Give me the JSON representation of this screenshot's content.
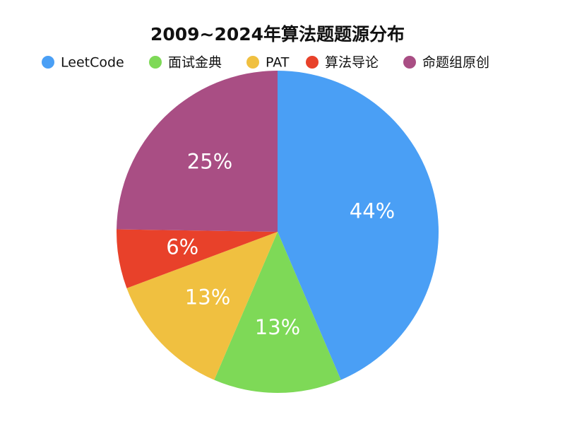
{
  "chart_data": {
    "type": "pie",
    "title": "2009~2024年算法题题源分布",
    "categories": [
      "LeetCode",
      "面试金典",
      "PAT",
      "算法导论",
      "命题组原创"
    ],
    "values": [
      44,
      13,
      13,
      6,
      25
    ],
    "value_labels": [
      "44%",
      "13%",
      "13%",
      "6%",
      "25%"
    ],
    "colors": [
      "#4a9ff5",
      "#7ed957",
      "#f0c040",
      "#e8412a",
      "#a94e84"
    ],
    "legend": "top"
  }
}
